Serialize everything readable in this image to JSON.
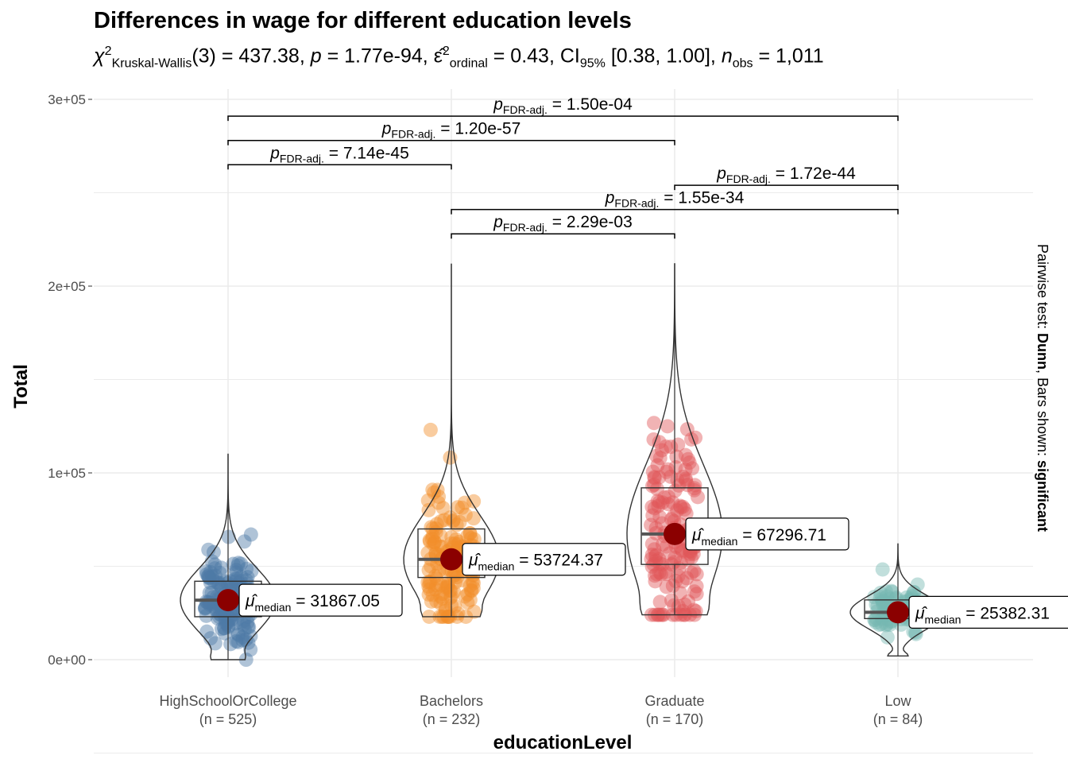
{
  "title": "Differences in wage for different education levels",
  "subtitle": {
    "chi": "χ",
    "chi_sup": "2",
    "chi_sub": "Kruskal-Wallis",
    "df": "(3) = 437.38, ",
    "p_sym": "p",
    "p_val": " = 1.77e-94, ",
    "eps": "ε̂",
    "eps_sup": "2",
    "eps_sub": "ordinal",
    "eps_val": " = 0.43, CI",
    "ci_sub": "95%",
    "ci_val": " [0.38, 1.00], ",
    "n_sym": "n",
    "n_sub": "obs",
    "n_val": " = 1,011"
  },
  "chart_data": {
    "type": "violin-box-scatter",
    "xlabel": "educationLevel",
    "ylabel": "Total",
    "ylim": [
      -10000,
      300000
    ],
    "yticks": [
      0,
      100000,
      200000,
      300000
    ],
    "ytick_labels": [
      "0e+00",
      "1e+05",
      "2e+05",
      "3e+05"
    ],
    "grid": true,
    "right_caption": {
      "pre": "Pairwise test: ",
      "b1": "Dunn",
      "mid": ", Bars shown: ",
      "b2": "significant"
    },
    "groups": [
      {
        "name": "HighSchoolOrCollege",
        "n_label": "(n = 525)",
        "color": "#4E79A7",
        "median": 31867.05,
        "median_label": "31867.05",
        "q1": 23000,
        "q3": 42000,
        "min": 0,
        "max": 110000
      },
      {
        "name": "Bachelors",
        "n_label": "(n = 232)",
        "color": "#F28E2B",
        "median": 53724.37,
        "median_label": "53724.37",
        "q1": 44000,
        "q3": 70000,
        "min": 23000,
        "max": 212000
      },
      {
        "name": "Graduate",
        "n_label": "(n = 170)",
        "color": "#E15759",
        "median": 67296.71,
        "median_label": "67296.71",
        "q1": 51000,
        "q3": 92000,
        "min": 24000,
        "max": 212000
      },
      {
        "name": "Low",
        "n_label": "(n = 84)",
        "color": "#76B7B2",
        "median": 25382.31,
        "median_label": "25382.31",
        "q1": 22000,
        "q3": 32000,
        "min": 2000,
        "max": 62000
      }
    ],
    "median_label_prefix": "median",
    "pairwise": [
      {
        "from": 0,
        "to": 1,
        "y": 265000,
        "p": "7.14e-45"
      },
      {
        "from": 0,
        "to": 2,
        "y": 278000,
        "p": "1.20e-57"
      },
      {
        "from": 0,
        "to": 3,
        "y": 291000,
        "p": "1.50e-04"
      },
      {
        "from": 1,
        "to": 2,
        "y": 228000,
        "p": "2.29e-03"
      },
      {
        "from": 1,
        "to": 3,
        "y": 241000,
        "p": "1.55e-34"
      },
      {
        "from": 2,
        "to": 3,
        "y": 254000,
        "p": "1.72e-44"
      }
    ],
    "pairwise_label": {
      "p": "p",
      "sub": "FDR-adj."
    }
  }
}
